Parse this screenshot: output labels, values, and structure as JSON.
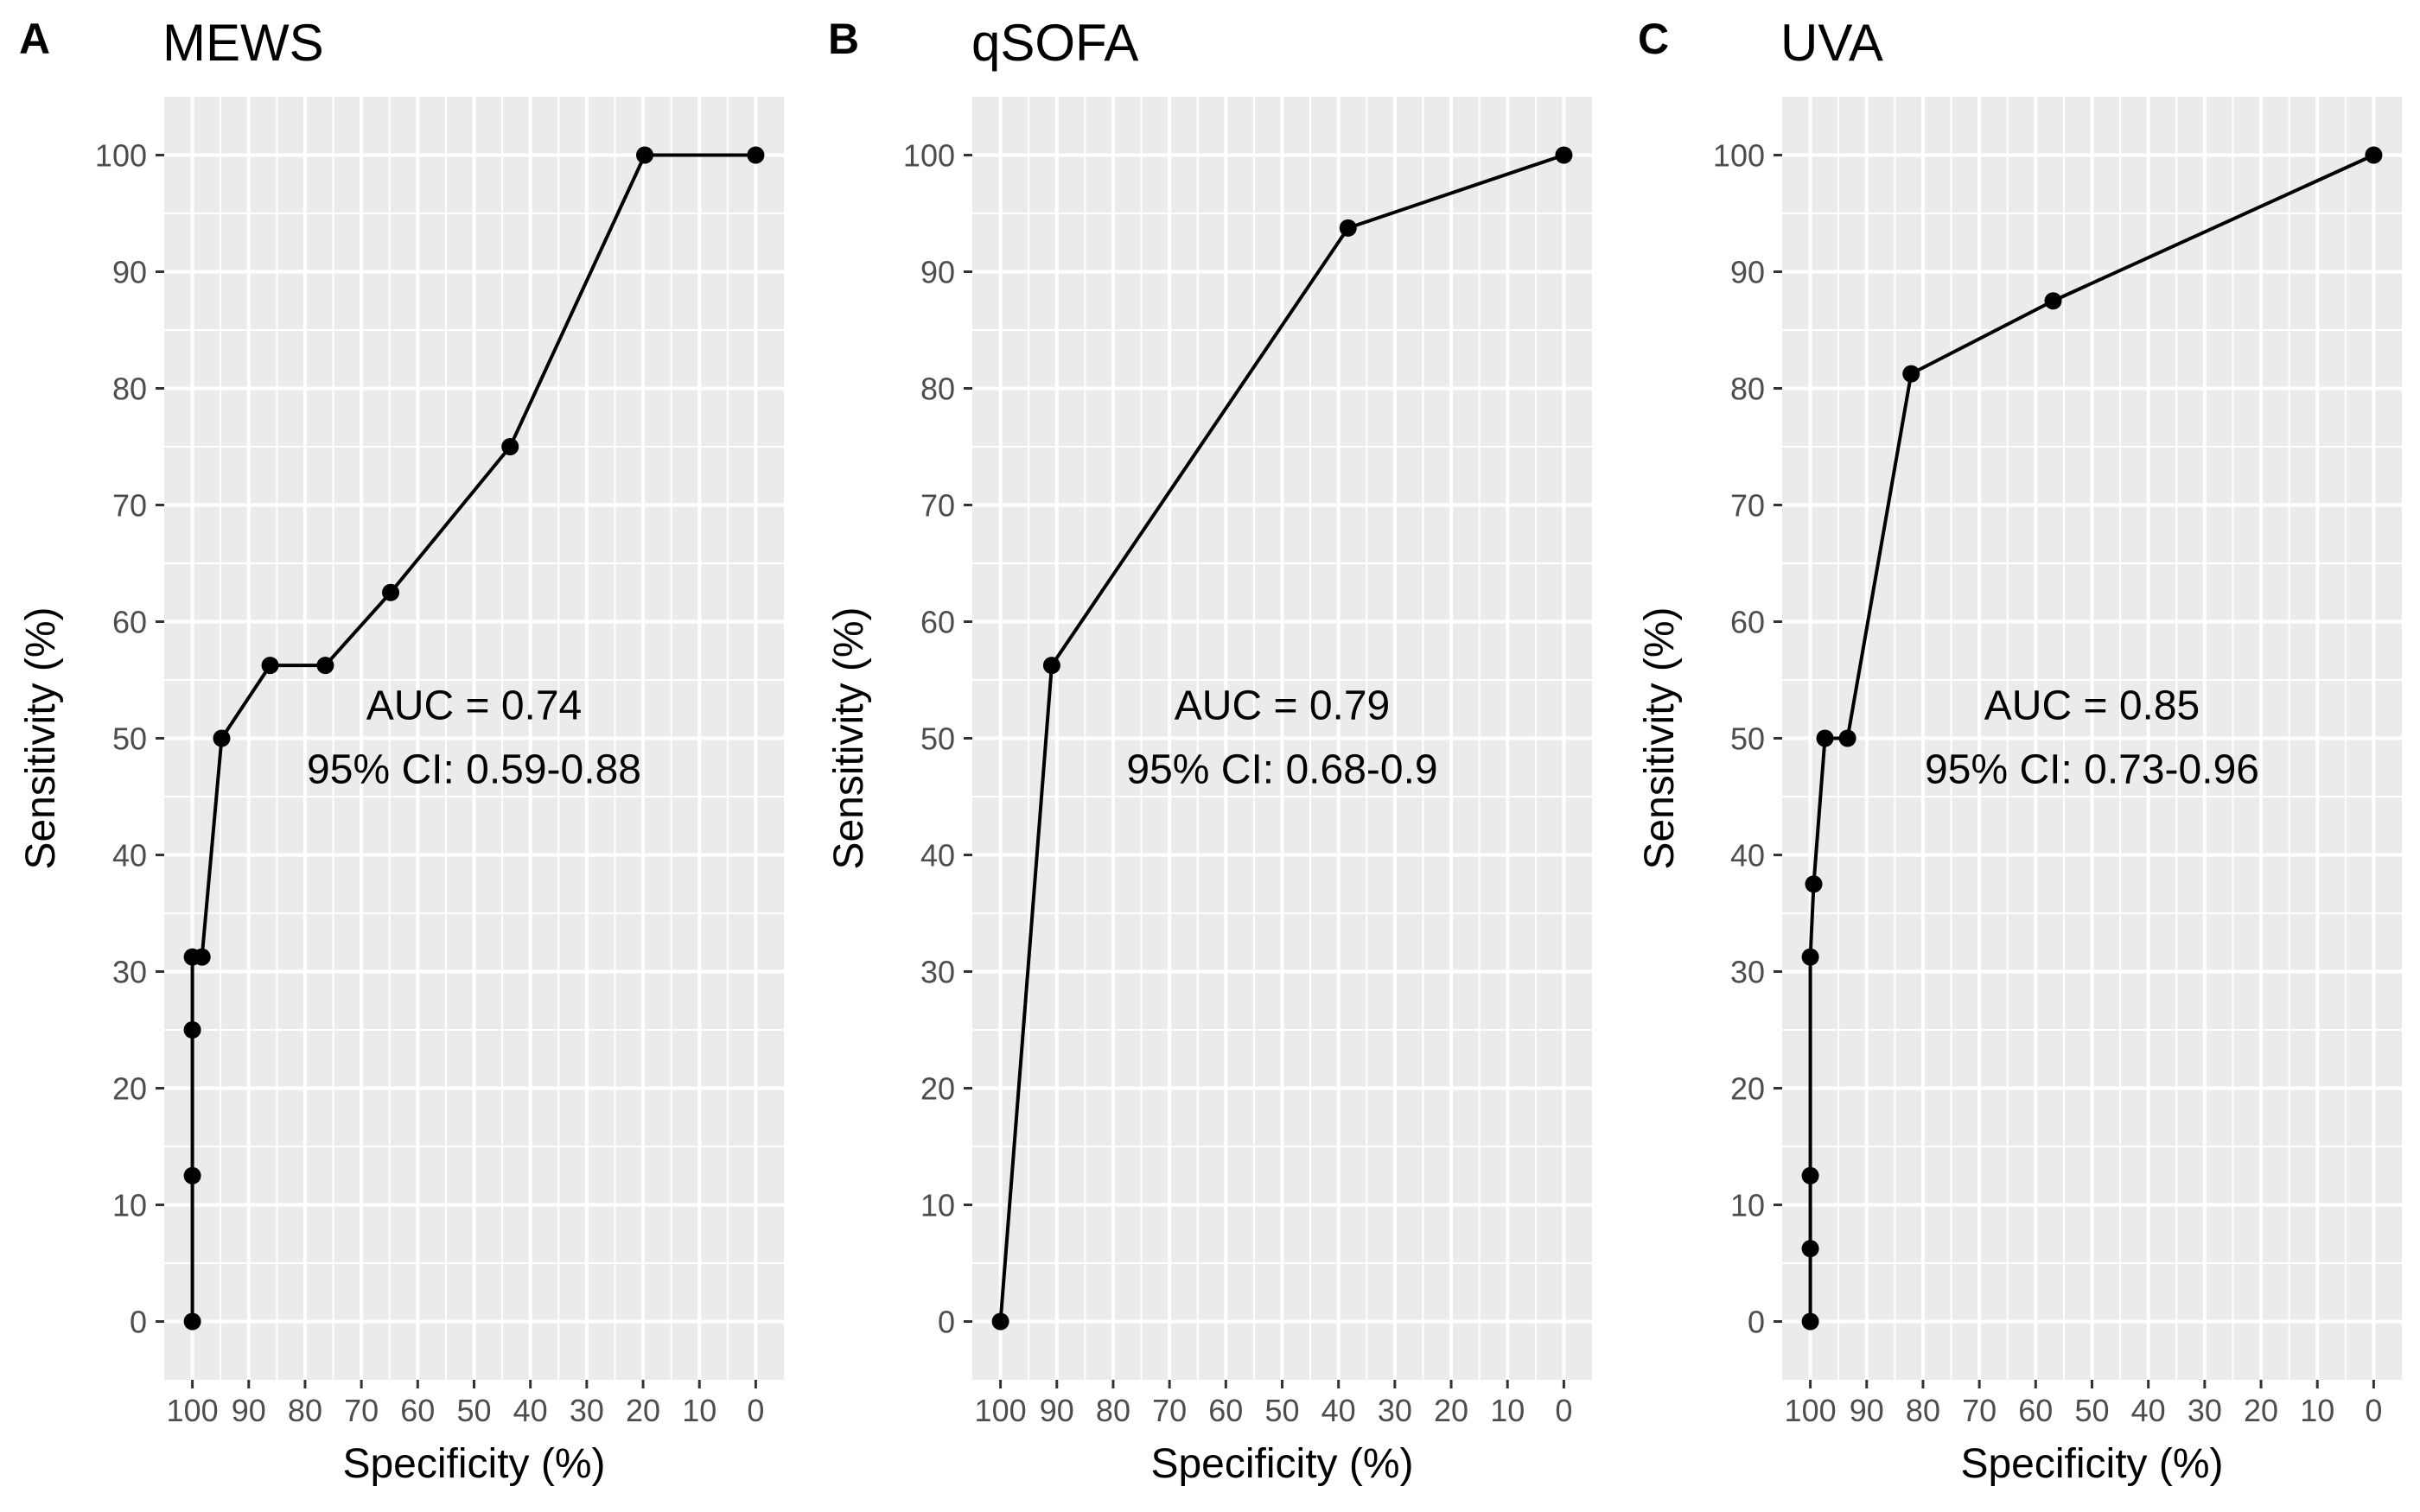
{
  "chart_data": [
    {
      "type": "line",
      "panel_tag": "A",
      "title": "MEWS",
      "xlabel": "Specificity (%)",
      "ylabel": "Sensitivity (%)",
      "xlim": [
        105,
        -5
      ],
      "ylim": [
        -5,
        105
      ],
      "x_reversed": true,
      "xticks": [
        100,
        90,
        80,
        70,
        60,
        50,
        40,
        30,
        20,
        10,
        0
      ],
      "xtick_labels": [
        "100",
        "90",
        "80",
        "70",
        "60",
        "50",
        "40",
        "30",
        "20",
        "10",
        "0"
      ],
      "yticks": [
        0,
        10,
        20,
        30,
        40,
        50,
        60,
        70,
        80,
        90,
        100
      ],
      "ytick_labels": [
        "0",
        "10",
        "20",
        "30",
        "40",
        "50",
        "60",
        "70",
        "80",
        "90",
        "100"
      ],
      "grid": true,
      "background": "#ebebeb",
      "grid_color": "#ffffff",
      "line_color": "#000000",
      "series": [
        {
          "x": [
            100,
            100,
            100,
            100,
            98.3,
            94.8,
            86.2,
            76.4,
            64.8,
            43.6,
            19.7,
            0
          ],
          "y": [
            0,
            12.5,
            25,
            31.25,
            31.25,
            50,
            56.25,
            56.25,
            62.5,
            75,
            100,
            100
          ]
        }
      ],
      "annotation": {
        "line1": "AUC = 0.74",
        "line2": "95% CI: 0.59-0.88",
        "x": 50,
        "y": 50
      }
    },
    {
      "type": "line",
      "panel_tag": "B",
      "title": "qSOFA",
      "xlabel": "Specificity (%)",
      "ylabel": "Sensitivity (%)",
      "xlim": [
        105,
        -5
      ],
      "ylim": [
        -5,
        105
      ],
      "x_reversed": true,
      "xticks": [
        100,
        90,
        80,
        70,
        60,
        50,
        40,
        30,
        20,
        10,
        0
      ],
      "xtick_labels": [
        "100",
        "90",
        "80",
        "70",
        "60",
        "50",
        "40",
        "30",
        "20",
        "10",
        "0"
      ],
      "yticks": [
        0,
        10,
        20,
        30,
        40,
        50,
        60,
        70,
        80,
        90,
        100
      ],
      "ytick_labels": [
        "0",
        "10",
        "20",
        "30",
        "40",
        "50",
        "60",
        "70",
        "80",
        "90",
        "100"
      ],
      "grid": true,
      "background": "#ebebeb",
      "grid_color": "#ffffff",
      "line_color": "#000000",
      "series": [
        {
          "x": [
            100,
            90.9,
            38.3,
            0
          ],
          "y": [
            0,
            56.25,
            93.75,
            100
          ]
        }
      ],
      "annotation": {
        "line1": "AUC = 0.79",
        "line2": "95% CI: 0.68-0.9",
        "x": 50,
        "y": 50
      }
    },
    {
      "type": "line",
      "panel_tag": "C",
      "title": "UVA",
      "xlabel": "Specificity (%)",
      "ylabel": "Sensitivity (%)",
      "xlim": [
        105,
        -5
      ],
      "ylim": [
        -5,
        105
      ],
      "x_reversed": true,
      "xticks": [
        100,
        90,
        80,
        70,
        60,
        50,
        40,
        30,
        20,
        10,
        0
      ],
      "xtick_labels": [
        "100",
        "90",
        "80",
        "70",
        "60",
        "50",
        "40",
        "30",
        "20",
        "10",
        "0"
      ],
      "yticks": [
        0,
        10,
        20,
        30,
        40,
        50,
        60,
        70,
        80,
        90,
        100
      ],
      "ytick_labels": [
        "0",
        "10",
        "20",
        "30",
        "40",
        "50",
        "60",
        "70",
        "80",
        "90",
        "100"
      ],
      "grid": true,
      "background": "#ebebeb",
      "grid_color": "#ffffff",
      "line_color": "#000000",
      "series": [
        {
          "x": [
            100,
            100,
            100,
            100,
            99.4,
            97.4,
            93.4,
            82.1,
            56.9,
            0
          ],
          "y": [
            0,
            6.25,
            12.5,
            31.25,
            37.5,
            50,
            50,
            81.25,
            87.5,
            100
          ]
        }
      ],
      "annotation": {
        "line1": "AUC = 0.85",
        "line2": "95% CI: 0.73-0.96",
        "x": 50,
        "y": 50
      }
    }
  ]
}
